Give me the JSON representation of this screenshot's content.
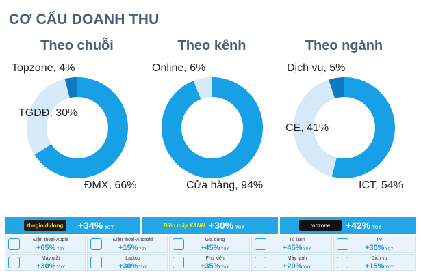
{
  "page_title": "CƠ CẤU DOANH THU",
  "colors": {
    "dark": "#1490d9",
    "mid": "#17a0e6",
    "light": "#d6e9f8",
    "title": "#4a5f73",
    "kpi_bar": "#23a6e6"
  },
  "chart_data": [
    {
      "type": "pie",
      "title": "Theo chuỗi",
      "slices": [
        {
          "label": "ĐMX, 66%",
          "name": "ĐMX",
          "value": 66,
          "color": "#17a0e6"
        },
        {
          "label": "TGDĐ, 30%",
          "name": "TGDĐ",
          "value": 30,
          "color": "#d6e9f8"
        },
        {
          "label": "Topzone, 4%",
          "name": "Topzone",
          "value": 4,
          "color": "#1078c4"
        }
      ]
    },
    {
      "type": "pie",
      "title": "Theo kênh",
      "slices": [
        {
          "label": "Cửa hàng, 94%",
          "name": "Cửa hàng",
          "value": 94,
          "color": "#17a0e6"
        },
        {
          "label": "Online, 6%",
          "name": "Online",
          "value": 6,
          "color": "#d6e9f8"
        }
      ]
    },
    {
      "type": "pie",
      "title": "Theo ngành",
      "slices": [
        {
          "label": "ICT, 54%",
          "name": "ICT",
          "value": 54,
          "color": "#17a0e6"
        },
        {
          "label": "CE, 41%",
          "name": "CE",
          "value": 41,
          "color": "#d6e9f8"
        },
        {
          "label": "Dịch vụ, 5%",
          "name": "Dịch vụ",
          "value": 5,
          "color": "#1078c4"
        }
      ]
    }
  ],
  "brands": [
    {
      "logo": "thegioididong",
      "growth": "+34%",
      "yoy": "YoY"
    },
    {
      "logo": "Điện máy XANH",
      "growth": "+30%",
      "yoy": "YoY"
    },
    {
      "logo": "topzone",
      "growth": "+42%",
      "yoy": "YoY"
    }
  ],
  "categories": [
    {
      "name": "Điện thoại-Apple",
      "growth": "+65%",
      "yoy": "YoY",
      "icon": "phone-icon"
    },
    {
      "name": "Điện thoại-Android",
      "growth": "+15%",
      "yoy": "YoY",
      "icon": "smartphone-icon"
    },
    {
      "name": "Gia dụng",
      "growth": "+45%",
      "yoy": "YoY",
      "icon": "rice-cooker-icon"
    },
    {
      "name": "Tủ lạnh",
      "growth": "+45%",
      "yoy": "YoY",
      "icon": "fridge-icon"
    },
    {
      "name": "TV",
      "growth": "+30%",
      "yoy": "YoY",
      "icon": "tv-icon"
    },
    {
      "name": "Máy giặt",
      "growth": "+30%",
      "yoy": "YoY",
      "icon": "washing-machine-icon"
    },
    {
      "name": "Laptop",
      "growth": "+30%",
      "yoy": "YoY",
      "icon": "laptop-icon"
    },
    {
      "name": "Phụ kiện",
      "growth": "+35%",
      "yoy": "YoY",
      "icon": "accessories-icon"
    },
    {
      "name": "Máy lạnh",
      "growth": "+20%",
      "yoy": "YoY",
      "icon": "air-conditioner-icon"
    },
    {
      "name": "Dịch vụ",
      "growth": "+15%",
      "yoy": "YoY",
      "icon": "service-icon"
    }
  ]
}
